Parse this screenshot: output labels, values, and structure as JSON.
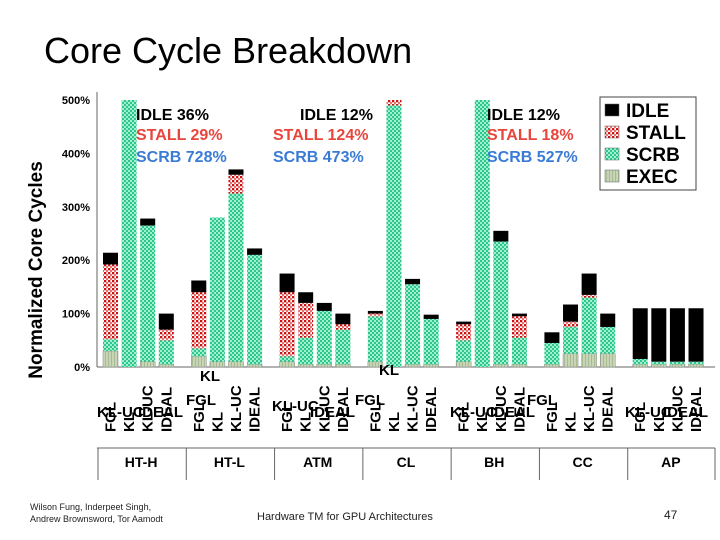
{
  "slide": {
    "title": "Core Cycle Breakdown",
    "authors_line1": "Wilson Fung, Inderpeet Singh,",
    "authors_line2": "Andrew Brownsword, Tor Aamodt",
    "talk_title": "Hardware TM for GPU Architectures",
    "page_number": "47"
  },
  "colors": {
    "idle": "#000000",
    "stall": "#cc1111",
    "scrb": "#3ccf9c",
    "exec": "#b9c9a6",
    "stall_label": "#e8453c",
    "scrb_label": "#3a7bd5"
  },
  "chart_data": {
    "type": "bar",
    "stacked": true,
    "ylabel": "Normalized Core Cycles",
    "ylim": [
      0,
      500
    ],
    "yticks": [
      "0%",
      "100%",
      "200%",
      "300%",
      "400%",
      "500%"
    ],
    "legend": [
      "IDLE",
      "STALL",
      "SCRB",
      "EXEC"
    ],
    "legend_position": "top-right",
    "groups": [
      {
        "name": "HT-H",
        "bars": [
          {
            "label": "FGL",
            "exec": 30,
            "scrb": 22,
            "stall": 140,
            "idle": 22
          },
          {
            "label": "KL",
            "exec": 0,
            "scrb": 500,
            "stall": 0,
            "idle": 0
          },
          {
            "label": "KL-UC",
            "exec": 10,
            "scrb": 255,
            "stall": 0,
            "idle": 13
          },
          {
            "label": "IDEAL",
            "exec": 5,
            "scrb": 45,
            "stall": 20,
            "idle": 30
          }
        ]
      },
      {
        "name": "HT-L",
        "bars": [
          {
            "label": "FGL",
            "exec": 20,
            "scrb": 15,
            "stall": 105,
            "idle": 22
          },
          {
            "label": "KL",
            "exec": 10,
            "scrb": 270,
            "stall": 0,
            "idle": 0
          },
          {
            "label": "KL-UC",
            "exec": 10,
            "scrb": 315,
            "stall": 35,
            "idle": 10
          },
          {
            "label": "IDEAL",
            "exec": 5,
            "scrb": 205,
            "stall": 0,
            "idle": 12
          }
        ]
      },
      {
        "name": "ATM",
        "bars": [
          {
            "label": "FGL",
            "exec": 10,
            "scrb": 10,
            "stall": 120,
            "idle": 35
          },
          {
            "label": "KL",
            "exec": 5,
            "scrb": 50,
            "stall": 65,
            "idle": 20
          },
          {
            "label": "KL-UC",
            "exec": 5,
            "scrb": 100,
            "stall": 0,
            "idle": 15
          },
          {
            "label": "IDEAL",
            "exec": 5,
            "scrb": 65,
            "stall": 10,
            "idle": 20
          }
        ]
      },
      {
        "name": "CL",
        "bars": [
          {
            "label": "FGL",
            "exec": 10,
            "scrb": 85,
            "stall": 5,
            "idle": 5
          },
          {
            "label": "KL",
            "exec": 0,
            "scrb": 490,
            "stall": 10,
            "idle": 0
          },
          {
            "label": "KL-UC",
            "exec": 5,
            "scrb": 150,
            "stall": 0,
            "idle": 10
          },
          {
            "label": "IDEAL",
            "exec": 5,
            "scrb": 85,
            "stall": 0,
            "idle": 8
          }
        ]
      },
      {
        "name": "BH",
        "bars": [
          {
            "label": "FGL",
            "exec": 10,
            "scrb": 40,
            "stall": 30,
            "idle": 5
          },
          {
            "label": "KL",
            "exec": 0,
            "scrb": 500,
            "stall": 0,
            "idle": 0
          },
          {
            "label": "KL-UC",
            "exec": 5,
            "scrb": 230,
            "stall": 0,
            "idle": 20
          },
          {
            "label": "IDEAL",
            "exec": 5,
            "scrb": 50,
            "stall": 40,
            "idle": 5
          }
        ]
      },
      {
        "name": "CC",
        "bars": [
          {
            "label": "FGL",
            "exec": 5,
            "scrb": 40,
            "stall": 0,
            "idle": 20
          },
          {
            "label": "KL",
            "exec": 25,
            "scrb": 50,
            "stall": 10,
            "idle": 32
          },
          {
            "label": "KL-UC",
            "exec": 25,
            "scrb": 105,
            "stall": 5,
            "idle": 40
          },
          {
            "label": "IDEAL",
            "exec": 25,
            "scrb": 50,
            "stall": 0,
            "idle": 25
          }
        ]
      },
      {
        "name": "AP",
        "bars": [
          {
            "label": "FGL",
            "exec": 5,
            "scrb": 10,
            "stall": 0,
            "idle": 95
          },
          {
            "label": "KL",
            "exec": 5,
            "scrb": 5,
            "stall": 0,
            "idle": 100
          },
          {
            "label": "KL-UC",
            "exec": 5,
            "scrb": 5,
            "stall": 0,
            "idle": 100
          },
          {
            "label": "IDEAL",
            "exec": 5,
            "scrb": 5,
            "stall": 0,
            "idle": 100
          }
        ]
      }
    ],
    "annotations": [
      {
        "group": "HT-H",
        "idle": "IDLE 36%",
        "stall": "STALL 29%",
        "scrb": "SCRB 728%"
      },
      {
        "group": "CL",
        "idle": "IDLE 12%",
        "stall": "STALL 124%",
        "scrb": "SCRB 473%"
      },
      {
        "group": "BH",
        "idle": "IDLE 12%",
        "stall": "STALL 18%",
        "scrb": "SCRB 527%"
      }
    ]
  }
}
